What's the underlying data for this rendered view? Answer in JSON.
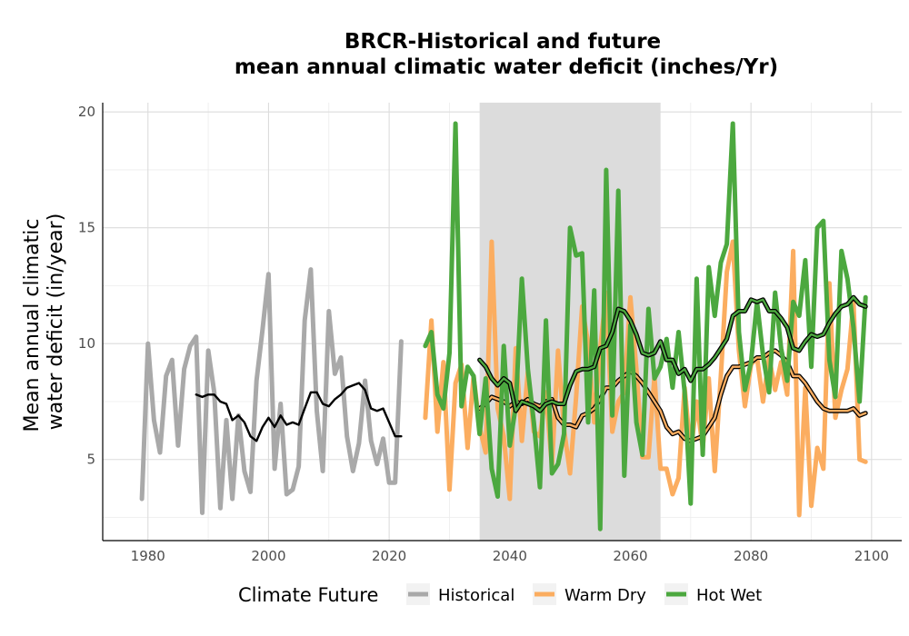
{
  "chart_data": {
    "type": "line",
    "title": [
      "BRCR-Historical and future",
      "mean annual climatic water deficit (inches/Yr)"
    ],
    "xlabel": "",
    "ylabel": [
      "Mean annual climatic",
      "water deficit (in/year)"
    ],
    "xlim": [
      1972.5,
      2105
    ],
    "ylim": [
      1.5,
      20.4
    ],
    "xticks": [
      1980,
      2000,
      2020,
      2040,
      2060,
      2080,
      2100
    ],
    "yticks": [
      5,
      10,
      15,
      20
    ],
    "grid": true,
    "shaded_period": [
      2035,
      2065
    ],
    "legend": {
      "title": "Climate Future",
      "position": "bottom",
      "entries": [
        {
          "label": "Historical",
          "color": "#a9a9a9"
        },
        {
          "label": "Warm Dry",
          "color": "#fbad60"
        },
        {
          "label": "Hot Wet",
          "color": "#4ca83f"
        }
      ]
    },
    "series": [
      {
        "name": "Historical",
        "color": "#a9a9a9",
        "x": [
          1979,
          1980,
          1981,
          1982,
          1983,
          1984,
          1985,
          1986,
          1987,
          1988,
          1989,
          1990,
          1991,
          1992,
          1993,
          1994,
          1995,
          1996,
          1997,
          1998,
          1999,
          2000,
          2001,
          2002,
          2003,
          2004,
          2005,
          2006,
          2007,
          2008,
          2009,
          2010,
          2011,
          2012,
          2013,
          2014,
          2015,
          2016,
          2017,
          2018,
          2019,
          2020,
          2021,
          2022
        ],
        "y": [
          3.3,
          10.0,
          6.7,
          5.3,
          8.6,
          9.3,
          5.6,
          8.9,
          9.9,
          10.3,
          2.7,
          9.7,
          7.9,
          2.9,
          6.7,
          3.3,
          6.9,
          4.5,
          3.6,
          8.4,
          10.6,
          13.0,
          4.6,
          7.4,
          3.5,
          3.7,
          4.7,
          11.0,
          13.2,
          7.1,
          4.5,
          11.4,
          8.7,
          9.4,
          6.0,
          4.5,
          5.7,
          8.4,
          5.8,
          4.8,
          5.9,
          4.0,
          4.0,
          10.1
        ]
      },
      {
        "name": "Historical trend",
        "color": "#000000",
        "x": [
          1988,
          1989,
          1990,
          1991,
          1992,
          1993,
          1994,
          1995,
          1996,
          1997,
          1998,
          1999,
          2000,
          2001,
          2002,
          2003,
          2004,
          2005,
          2006,
          2007,
          2008,
          2009,
          2010,
          2011,
          2012,
          2013,
          2014,
          2015,
          2016,
          2017,
          2018,
          2019,
          2020,
          2021,
          2022
        ],
        "y": [
          7.8,
          7.7,
          7.8,
          7.8,
          7.5,
          7.4,
          6.7,
          6.9,
          6.6,
          6.0,
          5.8,
          6.4,
          6.8,
          6.4,
          6.9,
          6.5,
          6.6,
          6.5,
          7.2,
          7.9,
          7.9,
          7.4,
          7.3,
          7.6,
          7.8,
          8.1,
          8.2,
          8.3,
          8.0,
          7.2,
          7.1,
          7.2,
          6.6,
          6.0,
          6.0
        ]
      },
      {
        "name": "Warm Dry",
        "color": "#fbad60",
        "x": [
          2026,
          2027,
          2028,
          2029,
          2030,
          2031,
          2032,
          2033,
          2034,
          2035,
          2036,
          2037,
          2038,
          2039,
          2040,
          2041,
          2042,
          2043,
          2044,
          2045,
          2046,
          2047,
          2048,
          2049,
          2050,
          2051,
          2052,
          2053,
          2054,
          2055,
          2056,
          2057,
          2058,
          2059,
          2060,
          2061,
          2062,
          2063,
          2064,
          2065,
          2066,
          2067,
          2068,
          2069,
          2070,
          2071,
          2072,
          2073,
          2074,
          2075,
          2076,
          2077,
          2078,
          2079,
          2080,
          2081,
          2082,
          2083,
          2084,
          2085,
          2086,
          2087,
          2088,
          2089,
          2090,
          2091,
          2092,
          2093,
          2094,
          2095,
          2096,
          2097,
          2098,
          2099
        ],
        "y": [
          6.8,
          11.0,
          6.2,
          9.2,
          3.7,
          8.3,
          9.1,
          5.5,
          8.6,
          6.4,
          5.3,
          14.4,
          7.2,
          6.0,
          3.3,
          9.8,
          5.8,
          8.8,
          6.2,
          6.0,
          7.9,
          4.7,
          9.7,
          6.3,
          4.4,
          7.7,
          11.6,
          10.0,
          6.6,
          9.8,
          12.2,
          6.2,
          7.5,
          7.9,
          12.0,
          8.9,
          5.1,
          5.1,
          8.6,
          4.6,
          4.6,
          3.5,
          4.2,
          8.1,
          5.3,
          7.5,
          5.5,
          8.5,
          4.5,
          8.6,
          13.1,
          14.4,
          9.7,
          7.3,
          9.1,
          9.4,
          7.5,
          9.4,
          8.0,
          9.2,
          7.8,
          14.0,
          2.6,
          8.1,
          3.0,
          5.5,
          4.6,
          12.6,
          6.8,
          8.0,
          8.9,
          11.8,
          5.0,
          4.9
        ]
      },
      {
        "name": "Warm Dry trend",
        "color": "#fbad60",
        "trend": true,
        "x": [
          2035,
          2036,
          2037,
          2038,
          2039,
          2040,
          2041,
          2042,
          2043,
          2044,
          2045,
          2046,
          2047,
          2048,
          2049,
          2050,
          2051,
          2052,
          2053,
          2054,
          2055,
          2056,
          2057,
          2058,
          2059,
          2060,
          2061,
          2062,
          2063,
          2064,
          2065,
          2066,
          2067,
          2068,
          2069,
          2070,
          2071,
          2072,
          2073,
          2074,
          2075,
          2076,
          2077,
          2078,
          2079,
          2080,
          2081,
          2082,
          2083,
          2084,
          2085,
          2086,
          2087,
          2088,
          2089,
          2090,
          2091,
          2092,
          2093,
          2094,
          2095,
          2096,
          2097,
          2098,
          2099
        ],
        "y": [
          7.2,
          7.4,
          7.7,
          7.6,
          7.5,
          7.3,
          7.5,
          7.4,
          7.6,
          7.4,
          7.3,
          7.5,
          7.6,
          6.8,
          6.5,
          6.5,
          6.4,
          6.9,
          7.0,
          7.2,
          7.6,
          8.1,
          8.1,
          8.4,
          8.6,
          8.8,
          8.6,
          8.3,
          7.9,
          7.5,
          7.1,
          6.4,
          6.1,
          6.2,
          5.9,
          5.8,
          5.9,
          6.0,
          6.4,
          6.8,
          7.8,
          8.6,
          9.0,
          9.0,
          9.1,
          9.2,
          9.4,
          9.4,
          9.6,
          9.7,
          9.5,
          9.2,
          8.6,
          8.6,
          8.3,
          7.9,
          7.5,
          7.2,
          7.1,
          7.1,
          7.1,
          7.1,
          7.2,
          6.9,
          7.0
        ]
      },
      {
        "name": "Hot Wet",
        "color": "#4ca83f",
        "x": [
          2026,
          2027,
          2028,
          2029,
          2030,
          2031,
          2032,
          2033,
          2034,
          2035,
          2036,
          2037,
          2038,
          2039,
          2040,
          2041,
          2042,
          2043,
          2044,
          2045,
          2046,
          2047,
          2048,
          2049,
          2050,
          2051,
          2052,
          2053,
          2054,
          2055,
          2056,
          2057,
          2058,
          2059,
          2060,
          2061,
          2062,
          2063,
          2064,
          2065,
          2066,
          2067,
          2068,
          2069,
          2070,
          2071,
          2072,
          2073,
          2074,
          2075,
          2076,
          2077,
          2078,
          2079,
          2080,
          2081,
          2082,
          2083,
          2084,
          2085,
          2086,
          2087,
          2088,
          2089,
          2090,
          2091,
          2092,
          2093,
          2094,
          2095,
          2096,
          2097,
          2098,
          2099
        ],
        "y": [
          9.9,
          10.5,
          7.8,
          7.2,
          9.6,
          19.5,
          7.3,
          9.0,
          8.6,
          6.1,
          8.5,
          4.6,
          3.4,
          9.9,
          5.6,
          7.3,
          12.8,
          8.9,
          6.6,
          3.8,
          11.0,
          4.4,
          4.8,
          6.1,
          15.0,
          13.8,
          13.9,
          6.6,
          12.3,
          2.0,
          17.5,
          6.9,
          16.6,
          4.3,
          10.8,
          6.6,
          5.2,
          11.5,
          8.5,
          9.0,
          10.2,
          8.1,
          10.5,
          7.9,
          3.1,
          12.8,
          5.2,
          13.3,
          11.2,
          13.5,
          14.3,
          19.5,
          10.5,
          8.0,
          9.2,
          11.8,
          9.5,
          7.9,
          12.2,
          9.8,
          8.4,
          11.8,
          11.2,
          13.6,
          9.0,
          15.0,
          15.3,
          9.3,
          7.7,
          14.0,
          12.8,
          10.7,
          7.5,
          12.0
        ]
      },
      {
        "name": "Hot Wet trend",
        "color": "#4ca83f",
        "trend": true,
        "x": [
          2035,
          2036,
          2037,
          2038,
          2039,
          2040,
          2041,
          2042,
          2043,
          2044,
          2045,
          2046,
          2047,
          2048,
          2049,
          2050,
          2051,
          2052,
          2053,
          2054,
          2055,
          2056,
          2057,
          2058,
          2059,
          2060,
          2061,
          2062,
          2063,
          2064,
          2065,
          2066,
          2067,
          2068,
          2069,
          2070,
          2071,
          2072,
          2073,
          2074,
          2075,
          2076,
          2077,
          2078,
          2079,
          2080,
          2081,
          2082,
          2083,
          2084,
          2085,
          2086,
          2087,
          2088,
          2089,
          2090,
          2091,
          2092,
          2093,
          2094,
          2095,
          2096,
          2097,
          2098,
          2099
        ],
        "y": [
          9.3,
          9.0,
          8.5,
          8.2,
          8.5,
          8.3,
          7.1,
          7.5,
          7.4,
          7.3,
          7.1,
          7.4,
          7.5,
          7.4,
          7.4,
          8.2,
          8.8,
          8.9,
          8.9,
          9.0,
          9.8,
          9.9,
          10.5,
          11.5,
          11.4,
          11.0,
          10.4,
          9.6,
          9.5,
          9.6,
          10.1,
          9.3,
          9.3,
          8.7,
          8.9,
          8.4,
          8.9,
          8.9,
          9.1,
          9.4,
          9.8,
          10.2,
          11.2,
          11.4,
          11.4,
          11.9,
          11.8,
          11.9,
          11.4,
          11.4,
          11.1,
          10.7,
          9.8,
          9.7,
          10.1,
          10.4,
          10.3,
          10.4,
          10.9,
          11.3,
          11.6,
          11.7,
          12.0,
          11.7,
          11.6
        ]
      }
    ]
  }
}
